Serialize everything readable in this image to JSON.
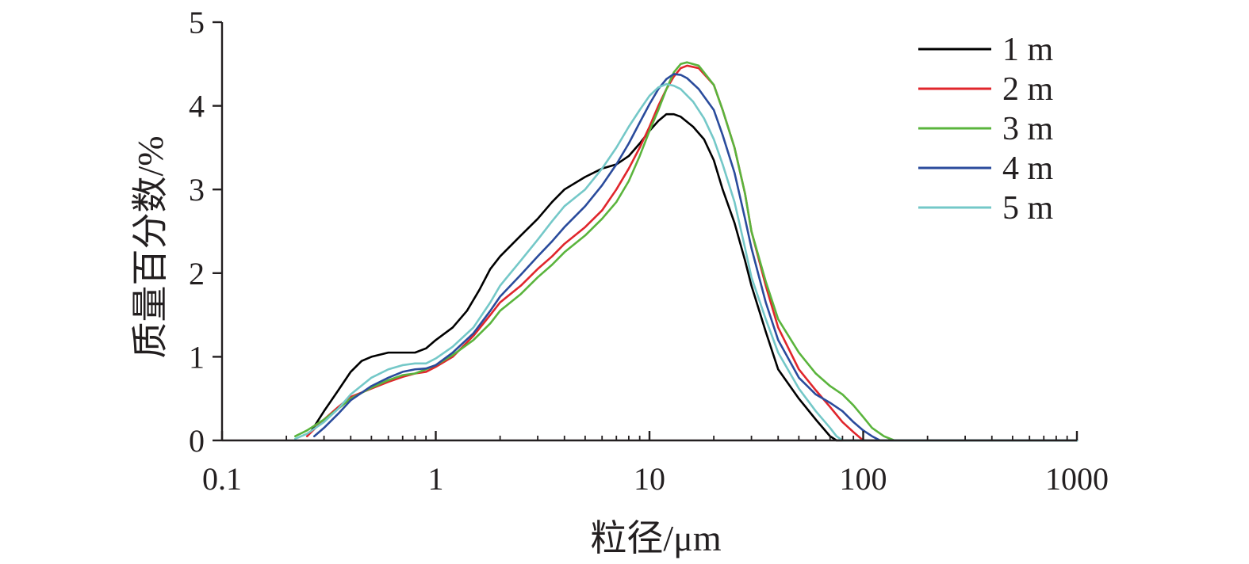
{
  "chart_data": {
    "type": "line",
    "title": "",
    "xlabel": "粒径/μm",
    "ylabel": "质量百分数/%",
    "x_scale": "log",
    "xlim": [
      0.1,
      1000
    ],
    "ylim": [
      0,
      5
    ],
    "x_ticks": [
      {
        "value": 0.1,
        "label": "0.1"
      },
      {
        "value": 1,
        "label": "1"
      },
      {
        "value": 10,
        "label": "10"
      },
      {
        "value": 100,
        "label": "100"
      },
      {
        "value": 1000,
        "label": "1000"
      }
    ],
    "y_ticks": [
      {
        "value": 0,
        "label": "0"
      },
      {
        "value": 1,
        "label": "1"
      },
      {
        "value": 2,
        "label": "2"
      },
      {
        "value": 3,
        "label": "3"
      },
      {
        "value": 4,
        "label": "4"
      },
      {
        "value": 5,
        "label": "5"
      }
    ],
    "grid": false,
    "legend_position": "top-right",
    "series": [
      {
        "name": "1 m",
        "color": "#000000",
        "points": [
          [
            0.26,
            0.1
          ],
          [
            0.3,
            0.35
          ],
          [
            0.35,
            0.6
          ],
          [
            0.4,
            0.82
          ],
          [
            0.45,
            0.95
          ],
          [
            0.5,
            1.0
          ],
          [
            0.6,
            1.05
          ],
          [
            0.7,
            1.05
          ],
          [
            0.8,
            1.05
          ],
          [
            0.9,
            1.1
          ],
          [
            1.0,
            1.2
          ],
          [
            1.2,
            1.35
          ],
          [
            1.4,
            1.55
          ],
          [
            1.6,
            1.8
          ],
          [
            1.8,
            2.05
          ],
          [
            2.0,
            2.2
          ],
          [
            2.5,
            2.45
          ],
          [
            3.0,
            2.65
          ],
          [
            3.5,
            2.85
          ],
          [
            4.0,
            3.0
          ],
          [
            5.0,
            3.15
          ],
          [
            6.0,
            3.25
          ],
          [
            7.0,
            3.3
          ],
          [
            8.0,
            3.4
          ],
          [
            9.0,
            3.55
          ],
          [
            10,
            3.7
          ],
          [
            11,
            3.82
          ],
          [
            12,
            3.9
          ],
          [
            13,
            3.9
          ],
          [
            14,
            3.87
          ],
          [
            16,
            3.75
          ],
          [
            18,
            3.6
          ],
          [
            20,
            3.35
          ],
          [
            22,
            3.0
          ],
          [
            25,
            2.6
          ],
          [
            28,
            2.15
          ],
          [
            30,
            1.85
          ],
          [
            35,
            1.3
          ],
          [
            40,
            0.85
          ],
          [
            50,
            0.5
          ],
          [
            60,
            0.25
          ],
          [
            70,
            0.05
          ],
          [
            75,
            0.0
          ],
          [
            1000,
            0.0
          ]
        ]
      },
      {
        "name": "2 m",
        "color": "#e0262c",
        "points": [
          [
            0.25,
            0.05
          ],
          [
            0.3,
            0.25
          ],
          [
            0.35,
            0.4
          ],
          [
            0.4,
            0.52
          ],
          [
            0.5,
            0.62
          ],
          [
            0.6,
            0.7
          ],
          [
            0.7,
            0.76
          ],
          [
            0.8,
            0.8
          ],
          [
            0.9,
            0.82
          ],
          [
            1.0,
            0.88
          ],
          [
            1.2,
            1.0
          ],
          [
            1.5,
            1.25
          ],
          [
            1.8,
            1.5
          ],
          [
            2.0,
            1.65
          ],
          [
            2.5,
            1.85
          ],
          [
            3.0,
            2.05
          ],
          [
            3.5,
            2.2
          ],
          [
            4.0,
            2.35
          ],
          [
            5.0,
            2.55
          ],
          [
            6.0,
            2.75
          ],
          [
            7.0,
            3.0
          ],
          [
            8.0,
            3.25
          ],
          [
            9.0,
            3.5
          ],
          [
            10,
            3.75
          ],
          [
            11,
            4.0
          ],
          [
            12,
            4.2
          ],
          [
            13,
            4.35
          ],
          [
            14,
            4.45
          ],
          [
            15,
            4.48
          ],
          [
            17,
            4.45
          ],
          [
            20,
            4.25
          ],
          [
            22,
            3.95
          ],
          [
            25,
            3.5
          ],
          [
            28,
            2.95
          ],
          [
            30,
            2.5
          ],
          [
            35,
            1.85
          ],
          [
            40,
            1.35
          ],
          [
            50,
            0.85
          ],
          [
            60,
            0.6
          ],
          [
            70,
            0.4
          ],
          [
            80,
            0.22
          ],
          [
            90,
            0.1
          ],
          [
            100,
            0.0
          ],
          [
            1000,
            0.0
          ]
        ]
      },
      {
        "name": "3 m",
        "color": "#5ab43c",
        "points": [
          [
            0.22,
            0.05
          ],
          [
            0.25,
            0.12
          ],
          [
            0.3,
            0.25
          ],
          [
            0.35,
            0.38
          ],
          [
            0.4,
            0.5
          ],
          [
            0.5,
            0.63
          ],
          [
            0.6,
            0.72
          ],
          [
            0.7,
            0.78
          ],
          [
            0.8,
            0.8
          ],
          [
            0.9,
            0.85
          ],
          [
            1.0,
            0.9
          ],
          [
            1.2,
            1.02
          ],
          [
            1.5,
            1.2
          ],
          [
            1.8,
            1.4
          ],
          [
            2.0,
            1.55
          ],
          [
            2.5,
            1.75
          ],
          [
            3.0,
            1.95
          ],
          [
            3.5,
            2.1
          ],
          [
            4.0,
            2.25
          ],
          [
            5.0,
            2.45
          ],
          [
            6.0,
            2.65
          ],
          [
            7.0,
            2.85
          ],
          [
            8.0,
            3.1
          ],
          [
            9.0,
            3.4
          ],
          [
            10,
            3.7
          ],
          [
            11,
            3.95
          ],
          [
            12,
            4.2
          ],
          [
            13,
            4.4
          ],
          [
            14,
            4.5
          ],
          [
            15,
            4.52
          ],
          [
            17,
            4.48
          ],
          [
            20,
            4.25
          ],
          [
            22,
            3.95
          ],
          [
            25,
            3.5
          ],
          [
            28,
            2.95
          ],
          [
            30,
            2.5
          ],
          [
            35,
            1.9
          ],
          [
            40,
            1.45
          ],
          [
            50,
            1.05
          ],
          [
            60,
            0.8
          ],
          [
            70,
            0.65
          ],
          [
            80,
            0.55
          ],
          [
            90,
            0.42
          ],
          [
            100,
            0.28
          ],
          [
            110,
            0.15
          ],
          [
            125,
            0.05
          ],
          [
            140,
            0.0
          ],
          [
            1000,
            0.0
          ]
        ]
      },
      {
        "name": "4 m",
        "color": "#2a4b9c",
        "points": [
          [
            0.27,
            0.05
          ],
          [
            0.3,
            0.15
          ],
          [
            0.35,
            0.32
          ],
          [
            0.4,
            0.48
          ],
          [
            0.5,
            0.65
          ],
          [
            0.6,
            0.75
          ],
          [
            0.7,
            0.82
          ],
          [
            0.8,
            0.85
          ],
          [
            0.9,
            0.86
          ],
          [
            1.0,
            0.9
          ],
          [
            1.2,
            1.05
          ],
          [
            1.5,
            1.28
          ],
          [
            1.8,
            1.55
          ],
          [
            2.0,
            1.72
          ],
          [
            2.5,
            1.98
          ],
          [
            3.0,
            2.2
          ],
          [
            3.5,
            2.38
          ],
          [
            4.0,
            2.55
          ],
          [
            5.0,
            2.8
          ],
          [
            6.0,
            3.05
          ],
          [
            7.0,
            3.3
          ],
          [
            8.0,
            3.55
          ],
          [
            9.0,
            3.8
          ],
          [
            10,
            4.02
          ],
          [
            11,
            4.2
          ],
          [
            12,
            4.32
          ],
          [
            13,
            4.38
          ],
          [
            14,
            4.37
          ],
          [
            15,
            4.33
          ],
          [
            17,
            4.2
          ],
          [
            20,
            3.95
          ],
          [
            22,
            3.65
          ],
          [
            25,
            3.2
          ],
          [
            28,
            2.65
          ],
          [
            30,
            2.3
          ],
          [
            35,
            1.65
          ],
          [
            40,
            1.2
          ],
          [
            50,
            0.75
          ],
          [
            60,
            0.55
          ],
          [
            70,
            0.45
          ],
          [
            80,
            0.35
          ],
          [
            90,
            0.22
          ],
          [
            100,
            0.12
          ],
          [
            110,
            0.05
          ],
          [
            120,
            0.0
          ],
          [
            1000,
            0.0
          ]
        ]
      },
      {
        "name": "5 m",
        "color": "#74c8c8",
        "points": [
          [
            0.22,
            0.02
          ],
          [
            0.25,
            0.08
          ],
          [
            0.3,
            0.22
          ],
          [
            0.35,
            0.38
          ],
          [
            0.4,
            0.55
          ],
          [
            0.5,
            0.75
          ],
          [
            0.6,
            0.85
          ],
          [
            0.7,
            0.9
          ],
          [
            0.8,
            0.92
          ],
          [
            0.9,
            0.92
          ],
          [
            1.0,
            0.98
          ],
          [
            1.2,
            1.12
          ],
          [
            1.5,
            1.35
          ],
          [
            1.8,
            1.65
          ],
          [
            2.0,
            1.85
          ],
          [
            2.5,
            2.15
          ],
          [
            3.0,
            2.4
          ],
          [
            3.5,
            2.62
          ],
          [
            4.0,
            2.8
          ],
          [
            5.0,
            3.0
          ],
          [
            6.0,
            3.25
          ],
          [
            7.0,
            3.5
          ],
          [
            8.0,
            3.75
          ],
          [
            9.0,
            3.95
          ],
          [
            10,
            4.12
          ],
          [
            11,
            4.22
          ],
          [
            12,
            4.26
          ],
          [
            13,
            4.24
          ],
          [
            14,
            4.2
          ],
          [
            16,
            4.05
          ],
          [
            18,
            3.85
          ],
          [
            20,
            3.6
          ],
          [
            22,
            3.3
          ],
          [
            25,
            2.85
          ],
          [
            28,
            2.3
          ],
          [
            30,
            1.95
          ],
          [
            35,
            1.45
          ],
          [
            40,
            1.05
          ],
          [
            50,
            0.62
          ],
          [
            60,
            0.35
          ],
          [
            70,
            0.15
          ],
          [
            75,
            0.05
          ],
          [
            80,
            0.0
          ],
          [
            1000,
            0.0
          ]
        ]
      }
    ]
  }
}
